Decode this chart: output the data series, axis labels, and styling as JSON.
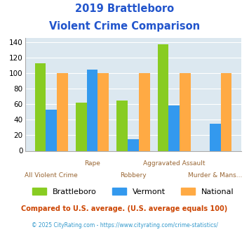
{
  "title_line1": "2019 Brattleboro",
  "title_line2": "Violent Crime Comparison",
  "categories_top": [
    "Rape",
    "Aggravated Assault",
    ""
  ],
  "categories_bottom": [
    "All Violent Crime",
    "Robbery",
    "Murder & Mans..."
  ],
  "brattleboro": [
    113,
    62,
    65,
    137,
    0
  ],
  "vermont": [
    53,
    105,
    15,
    58,
    35
  ],
  "national": [
    100,
    100,
    100,
    100,
    100
  ],
  "colors": {
    "brattleboro": "#88cc22",
    "vermont": "#3399ee",
    "national": "#ffaa44"
  },
  "ylim": [
    0,
    145
  ],
  "yticks": [
    0,
    20,
    40,
    60,
    80,
    100,
    120,
    140
  ],
  "plot_bg": "#dce8f0",
  "title_color": "#2255cc",
  "xlabel_color_top": "#996633",
  "xlabel_color_bottom": "#996633",
  "footer_text": "Compared to U.S. average. (U.S. average equals 100)",
  "copyright_text": "© 2025 CityRating.com - https://www.cityrating.com/crime-statistics/",
  "footer_color": "#cc4400",
  "copyright_color": "#3399cc",
  "legend_labels": [
    "Brattleboro",
    "Vermont",
    "National"
  ]
}
